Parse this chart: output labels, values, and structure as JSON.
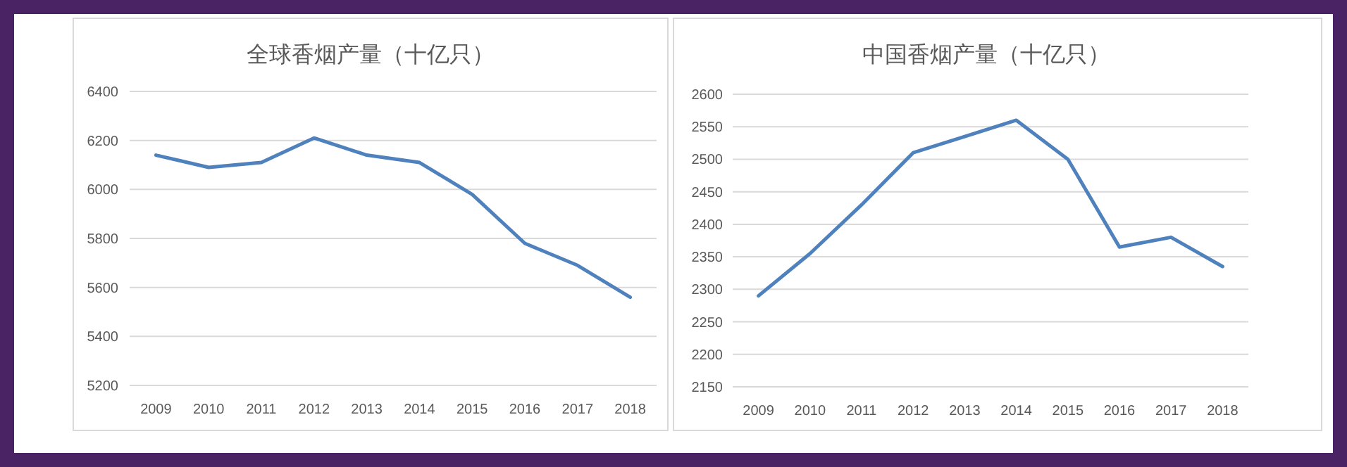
{
  "chart_data": [
    {
      "type": "line",
      "title": "全球香烟产量（十亿只）",
      "categories": [
        "2009",
        "2010",
        "2011",
        "2012",
        "2013",
        "2014",
        "2015",
        "2016",
        "2017",
        "2018"
      ],
      "series": [
        {
          "color": "#4f81bd",
          "values": [
            6140,
            6090,
            6110,
            6210,
            6140,
            6110,
            5980,
            5780,
            5690,
            5560
          ]
        }
      ],
      "ylim": [
        5200,
        6400
      ],
      "yticks": [
        5200,
        5400,
        5600,
        5800,
        6000,
        6200,
        6400
      ],
      "grid": "y"
    },
    {
      "type": "line",
      "title": "中国香烟产量（十亿只）",
      "categories": [
        "2009",
        "2010",
        "2011",
        "2012",
        "2013",
        "2014",
        "2015",
        "2016",
        "2017",
        "2018"
      ],
      "series": [
        {
          "color": "#4f81bd",
          "values": [
            2290,
            2355,
            2430,
            2510,
            2535,
            2560,
            2500,
            2365,
            2380,
            2335
          ]
        }
      ],
      "ylim": [
        2150,
        2600
      ],
      "yticks": [
        2150,
        2200,
        2250,
        2300,
        2350,
        2400,
        2450,
        2500,
        2550,
        2600
      ],
      "grid": "y"
    }
  ]
}
